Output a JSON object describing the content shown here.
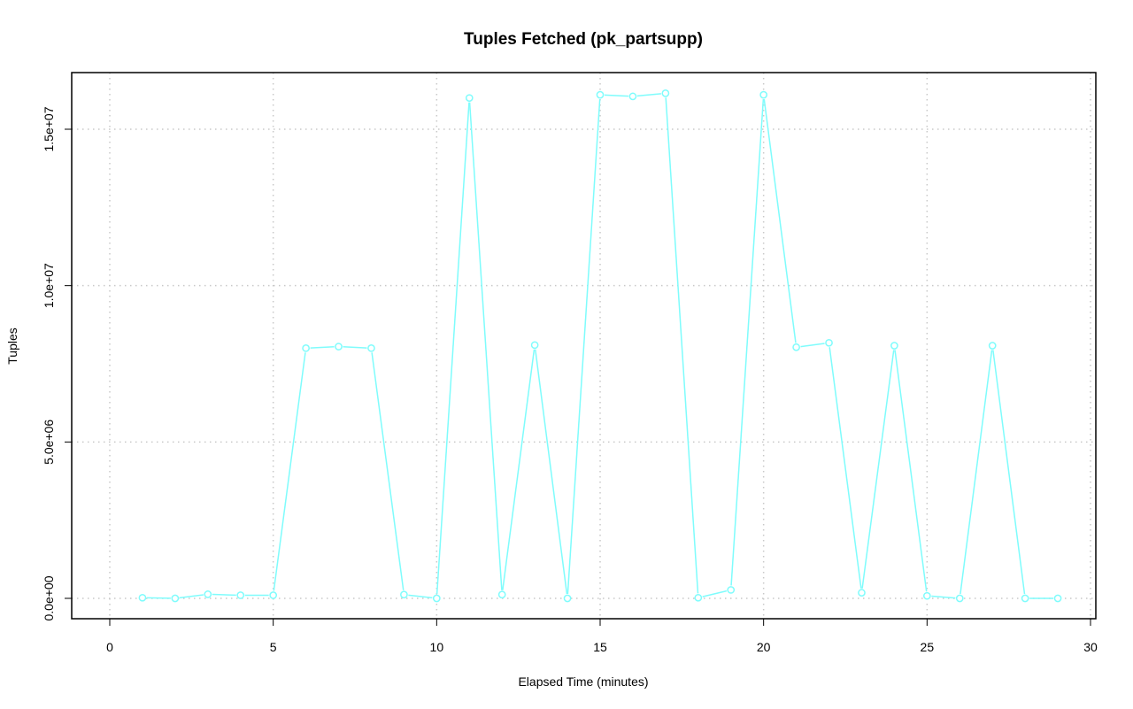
{
  "chart_data": {
    "type": "line",
    "title": "Tuples Fetched (pk_partsupp)",
    "xlabel": "Elapsed Time (minutes)",
    "ylabel": "Tuples",
    "xlim": [
      0,
      30
    ],
    "ylim": [
      0,
      16000000
    ],
    "x_ticks": [
      0,
      5,
      10,
      15,
      20,
      25,
      30
    ],
    "x_tick_labels": [
      "0",
      "5",
      "10",
      "15",
      "20",
      "25",
      "30"
    ],
    "y_ticks": [
      0,
      5000000,
      10000000,
      15000000
    ],
    "y_tick_labels": [
      "0.0e+00",
      "5.0e+06",
      "1.0e+07",
      "1.5e+07"
    ],
    "grid": true,
    "line_color": "#7ffcfc",
    "series": [
      {
        "x": [
          1,
          2,
          3,
          4,
          5,
          6,
          7,
          8,
          9,
          10,
          11,
          12,
          13,
          14,
          15,
          16,
          17,
          18,
          19,
          20,
          21,
          22,
          23,
          24,
          25,
          26,
          27,
          28,
          29
        ],
        "values": [
          20000,
          0,
          130000,
          100000,
          100000,
          8000000,
          8050000,
          8000000,
          120000,
          0,
          16000000,
          120000,
          8100000,
          0,
          16100000,
          16050000,
          16150000,
          20000,
          270000,
          16100000,
          8030000,
          8170000,
          180000,
          8080000,
          80000,
          0,
          8080000,
          0,
          0
        ]
      }
    ]
  }
}
